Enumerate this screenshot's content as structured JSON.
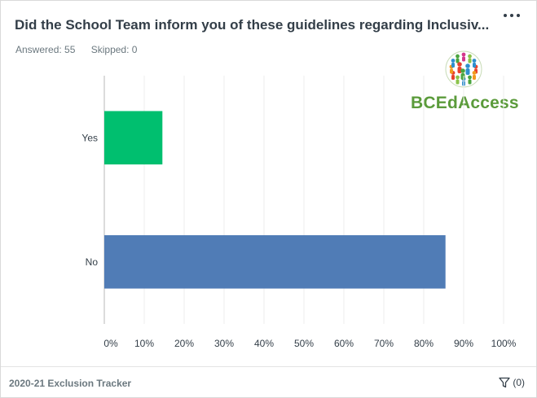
{
  "header": {
    "title": "Did the School Team inform you of these guidelines regarding Inclusiv...",
    "answered": "Answered: 55",
    "skipped": "Skipped: 0"
  },
  "logo": {
    "text": "BCEdAccess"
  },
  "chart_data": {
    "type": "bar",
    "orientation": "horizontal",
    "categories": [
      "Yes",
      "No"
    ],
    "values": [
      14.55,
      85.45
    ],
    "colors": [
      "#00bf6f",
      "#507cb6"
    ],
    "xlim": [
      0,
      100
    ],
    "xticks": [
      "0%",
      "10%",
      "20%",
      "30%",
      "40%",
      "50%",
      "60%",
      "70%",
      "80%",
      "90%",
      "100%"
    ],
    "grid": true
  },
  "footer": {
    "title": "2020-21 Exclusion Tracker",
    "filter_count": "(0)"
  }
}
